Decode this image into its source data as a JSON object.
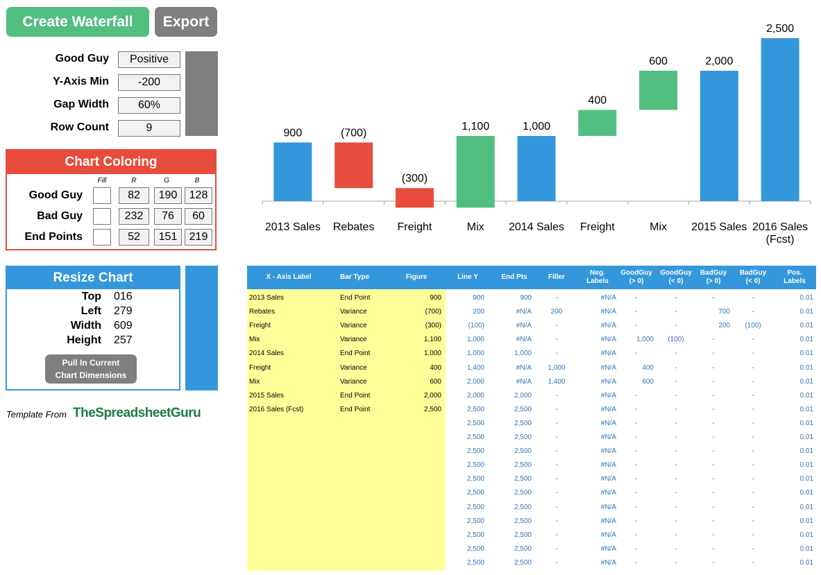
{
  "buttons": {
    "create": "Create Waterfall",
    "export": "Export"
  },
  "settings": [
    {
      "label": "Good Guy",
      "value": "Positive"
    },
    {
      "label": "Y-Axis Min",
      "value": "-200"
    },
    {
      "label": "Gap Width",
      "value": "60%"
    },
    {
      "label": "Row Count",
      "value": "9"
    }
  ],
  "chart_coloring": {
    "title": "Chart Coloring",
    "col_headers": [
      "Fill",
      "R",
      "G",
      "B"
    ],
    "rows": [
      {
        "label": "Good Guy",
        "r": "82",
        "g": "190",
        "b": "128"
      },
      {
        "label": "Bad Guy",
        "r": "232",
        "g": "76",
        "b": "60"
      },
      {
        "label": "End Points",
        "r": "52",
        "g": "151",
        "b": "219"
      }
    ]
  },
  "resize": {
    "title": "Resize Chart",
    "rows": [
      {
        "label": "Top",
        "value": "016"
      },
      {
        "label": "Left",
        "value": "279"
      },
      {
        "label": "Width",
        "value": "609"
      },
      {
        "label": "Height",
        "value": "257"
      }
    ],
    "button_line1": "Pull In Current",
    "button_line2": "Chart Dimensions"
  },
  "template_credit": {
    "prefix": "Template From",
    "brand": "TheSpreadsheetGuru"
  },
  "colors": {
    "good": "#52be80",
    "bad": "#e84c3c",
    "end": "#3497db",
    "green_button": "#52be80",
    "gray_button": "#7f7f7f",
    "yellow": "#ffff99",
    "table_header": "#3497db"
  },
  "chart_data": {
    "type": "bar",
    "subtype": "waterfall",
    "categories": [
      "2013 Sales",
      "Rebates",
      "Freight",
      "Mix",
      "2014 Sales",
      "Freight",
      "Mix",
      "2015 Sales",
      "2016 Sales (Fcst)"
    ],
    "category_lines": [
      [
        "2013 Sales"
      ],
      [
        "Rebates"
      ],
      [
        "Freight"
      ],
      [
        "Mix"
      ],
      [
        "2014 Sales"
      ],
      [
        "Freight"
      ],
      [
        "Mix"
      ],
      [
        "2015 Sales"
      ],
      [
        "2016 Sales",
        "(Fcst)"
      ]
    ],
    "bars": [
      {
        "base": 0,
        "top": 900,
        "kind": "end",
        "label": "900"
      },
      {
        "base": 200,
        "top": 900,
        "kind": "bad",
        "label": "(700)"
      },
      {
        "base": -100,
        "top": 200,
        "kind": "bad",
        "label": "(300)"
      },
      {
        "base": -100,
        "top": 1000,
        "kind": "good",
        "label": "1,100"
      },
      {
        "base": 0,
        "top": 1000,
        "kind": "end",
        "label": "1,000"
      },
      {
        "base": 1000,
        "top": 1400,
        "kind": "good",
        "label": "400"
      },
      {
        "base": 1400,
        "top": 2000,
        "kind": "good",
        "label": "600"
      },
      {
        "base": 0,
        "top": 2000,
        "kind": "end",
        "label": "2,000"
      },
      {
        "base": 0,
        "top": 2500,
        "kind": "end",
        "label": "2,500"
      }
    ],
    "ylim": [
      -200,
      2500
    ]
  },
  "table": {
    "headers": [
      "X - Axis Label",
      "Bar Type",
      "Figure",
      "Line Y",
      "End Pts",
      "Filler",
      "Neg.\nLabels",
      "GoodGuy\n(> 0)",
      "GoodGuy\n(< 0)",
      "BadGuy\n(> 0)",
      "BadGuy\n(< 0)",
      "Pos.\nLabels"
    ],
    "input_rows": [
      [
        "2013 Sales",
        "End Point",
        "900"
      ],
      [
        "Rebates",
        "Variance",
        "(700)"
      ],
      [
        "Freight",
        "Variance",
        "(300)"
      ],
      [
        "Mix",
        "Variance",
        "1,100"
      ],
      [
        "2014 Sales",
        "End Point",
        "1,000"
      ],
      [
        "Freight",
        "Variance",
        "400"
      ],
      [
        "Mix",
        "Variance",
        "600"
      ],
      [
        "2015 Sales",
        "End Point",
        "2,000"
      ],
      [
        "2016 Sales (Fcst)",
        "End Point",
        "2,500"
      ]
    ],
    "calc_rows": [
      [
        "900",
        "900",
        "-",
        "#N/A",
        "-",
        "-",
        "-",
        "-",
        "0.01"
      ],
      [
        "200",
        "#N/A",
        "200",
        "#N/A",
        "-",
        "-",
        "700",
        "-",
        "0.01"
      ],
      [
        "(100)",
        "#N/A",
        "-",
        "#N/A",
        "-",
        "-",
        "200",
        "(100)",
        "0.01"
      ],
      [
        "1,000",
        "#N/A",
        "-",
        "#N/A",
        "1,000",
        "(100)",
        "-",
        "-",
        "0.01"
      ],
      [
        "1,000",
        "1,000",
        "-",
        "#N/A",
        "-",
        "-",
        "-",
        "-",
        "0.01"
      ],
      [
        "1,400",
        "#N/A",
        "1,000",
        "#N/A",
        "400",
        "-",
        "-",
        "-",
        "0.01"
      ],
      [
        "2,000",
        "#N/A",
        "1,400",
        "#N/A",
        "600",
        "-",
        "-",
        "-",
        "0.01"
      ],
      [
        "2,000",
        "2,000",
        "-",
        "#N/A",
        "-",
        "-",
        "-",
        "-",
        "0.01"
      ],
      [
        "2,500",
        "2,500",
        "-",
        "#N/A",
        "-",
        "-",
        "-",
        "-",
        "0.01"
      ],
      [
        "2,500",
        "2,500",
        "-",
        "#N/A",
        "-",
        "-",
        "-",
        "-",
        "0.01"
      ],
      [
        "2,500",
        "2,500",
        "-",
        "#N/A",
        "-",
        "-",
        "-",
        "-",
        "0.01"
      ],
      [
        "2,500",
        "2,500",
        "-",
        "#N/A",
        "-",
        "-",
        "-",
        "-",
        "0.01"
      ],
      [
        "2,500",
        "2,500",
        "-",
        "#N/A",
        "-",
        "-",
        "-",
        "-",
        "0.01"
      ],
      [
        "2,500",
        "2,500",
        "-",
        "#N/A",
        "-",
        "-",
        "-",
        "-",
        "0.01"
      ],
      [
        "2,500",
        "2,500",
        "-",
        "#N/A",
        "-",
        "-",
        "-",
        "-",
        "0.01"
      ],
      [
        "2,500",
        "2,500",
        "-",
        "#N/A",
        "-",
        "-",
        "-",
        "-",
        "0.01"
      ],
      [
        "2,500",
        "2,500",
        "-",
        "#N/A",
        "-",
        "-",
        "-",
        "-",
        "0.01"
      ],
      [
        "2,500",
        "2,500",
        "-",
        "#N/A",
        "-",
        "-",
        "-",
        "-",
        "0.01"
      ],
      [
        "2,500",
        "2,500",
        "-",
        "#N/A",
        "-",
        "-",
        "-",
        "-",
        "0.01"
      ],
      [
        "2,500",
        "2,500",
        "-",
        "#N/A",
        "-",
        "-",
        "-",
        "-",
        "0.01"
      ]
    ]
  }
}
